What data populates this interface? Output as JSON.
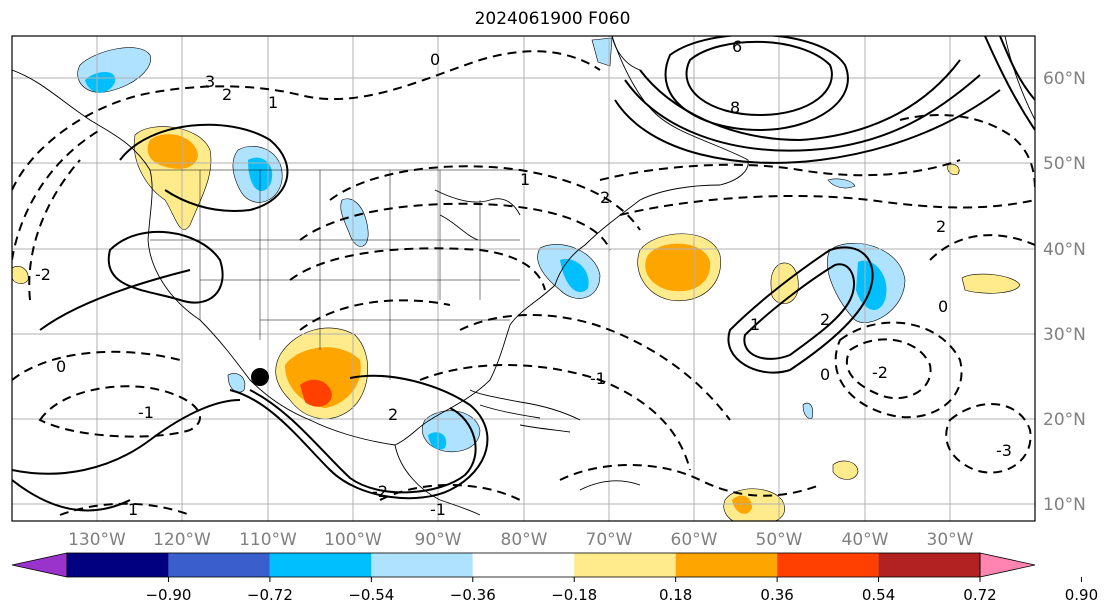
{
  "title": "2024061900 F060",
  "lat_labels": [
    "60°N",
    "50°N",
    "40°N",
    "30°N",
    "20°N",
    "10°N"
  ],
  "lon_labels": [
    "130°W",
    "120°W",
    "110°W",
    "100°W",
    "90°W",
    "80°W",
    "70°W",
    "60°W",
    "50°W",
    "40°W",
    "30°W"
  ],
  "colorbar": {
    "ticks": [
      "−0.90",
      "−0.72",
      "−0.54",
      "−0.36",
      "−0.18",
      "0.18",
      "0.36",
      "0.54",
      "0.72",
      "0.90"
    ],
    "colors": [
      "#9933cc",
      "#000080",
      "#3a5fcd",
      "#00bfff",
      "#aee2ff",
      "#ffffff",
      "#ffeb8c",
      "#ffa500",
      "#ff4000",
      "#b22222",
      "#ff85b0"
    ]
  },
  "contour_labels": [
    "6",
    "8",
    "3",
    "2",
    "1",
    "0",
    "-1",
    "-2",
    "-3",
    "2",
    "-1",
    "1",
    "-2",
    "2",
    "0",
    "2",
    "-2",
    "1",
    "-1",
    "1",
    "0",
    "2",
    "0"
  ]
}
